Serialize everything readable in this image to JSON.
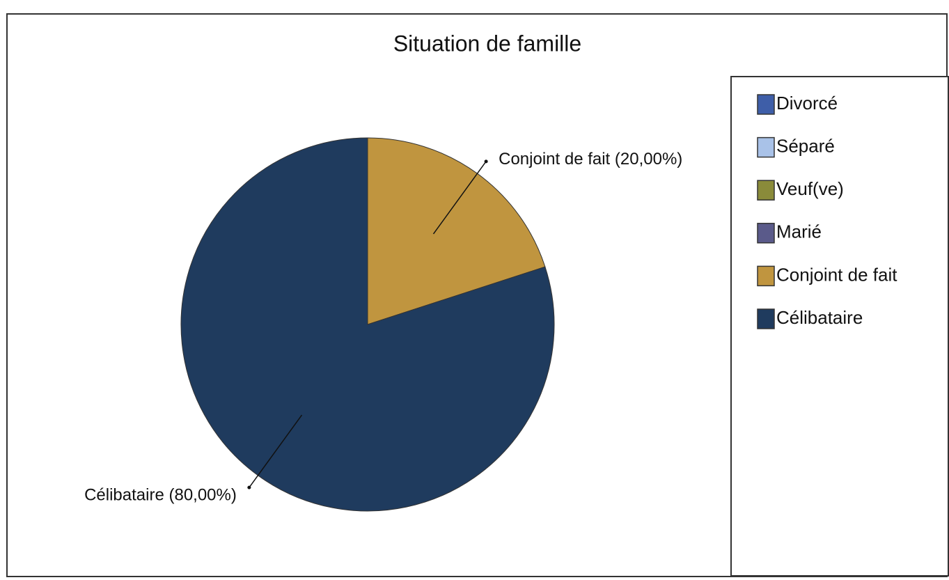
{
  "chart_data": {
    "type": "pie",
    "title": "Situation de famille",
    "categories": [
      "Divorcé",
      "Séparé",
      "Veuf(ve)",
      "Marié",
      "Conjoint de fait",
      "Célibataire"
    ],
    "values": [
      0,
      0,
      0,
      0,
      20,
      80
    ],
    "value_labels": [
      null,
      null,
      null,
      null,
      "Conjoint de fait (20,00%)",
      "Célibataire (80,00%)"
    ],
    "colors": [
      "#3e5ea8",
      "#a9c2e8",
      "#8a8b3a",
      "#5a5a8a",
      "#c0953f",
      "#1f3b5e"
    ],
    "legend": "right"
  }
}
